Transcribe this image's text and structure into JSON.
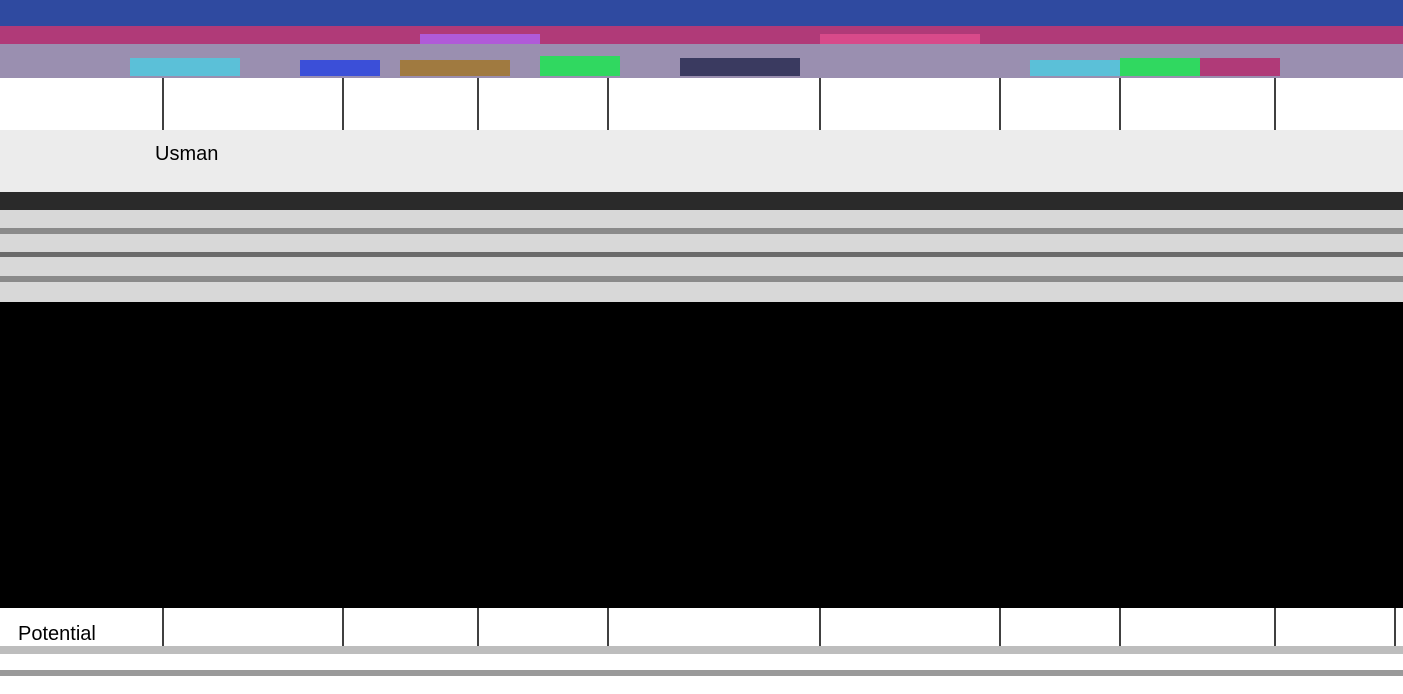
{
  "grid": {
    "user_cell": "Usman",
    "footer_cell": "Potential"
  }
}
